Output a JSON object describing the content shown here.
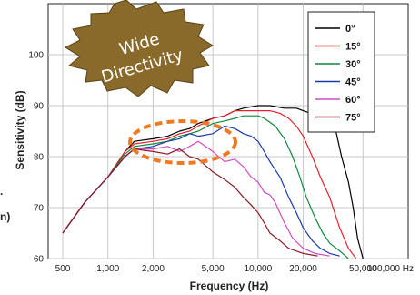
{
  "chart_data": {
    "type": "line",
    "xlabel": "Frequency (Hz)",
    "ylabel": "Sensitivity (dB)",
    "xscale": "log",
    "xlim": [
      400,
      100000
    ],
    "ylim": [
      60,
      110
    ],
    "grid": true,
    "xticks": [
      {
        "value": 500,
        "label": "500"
      },
      {
        "value": 1000,
        "label": "1,000"
      },
      {
        "value": 2000,
        "label": "2,000"
      },
      {
        "value": 5000,
        "label": "5,000"
      },
      {
        "value": 10000,
        "label": "10,000"
      },
      {
        "value": 20000,
        "label": "20,000"
      },
      {
        "value": 50000,
        "label": "50,000"
      },
      {
        "value": 100000,
        "label": "100,000 Hz"
      }
    ],
    "yticks": [
      {
        "value": 60,
        "label": "60"
      },
      {
        "value": 70,
        "label": "70"
      },
      {
        "value": 80,
        "label": "80"
      },
      {
        "value": 90,
        "label": "90"
      },
      {
        "value": 100,
        "label": "100"
      }
    ],
    "legend_position": "top-right",
    "series": [
      {
        "name": "0°",
        "color": "#000000",
        "points": [
          [
            500,
            65
          ],
          [
            700,
            71
          ],
          [
            1000,
            76
          ],
          [
            1300,
            81
          ],
          [
            1500,
            83
          ],
          [
            2000,
            83.5
          ],
          [
            2500,
            84
          ],
          [
            3000,
            85
          ],
          [
            3500,
            85.5
          ],
          [
            4000,
            86.5
          ],
          [
            5000,
            87.5
          ],
          [
            6000,
            88
          ],
          [
            7000,
            89
          ],
          [
            8000,
            89.5
          ],
          [
            10000,
            90
          ],
          [
            12000,
            90
          ],
          [
            15000,
            89.5
          ],
          [
            18000,
            89.5
          ],
          [
            20000,
            89
          ],
          [
            25000,
            88
          ],
          [
            30000,
            87
          ],
          [
            33000,
            85
          ],
          [
            36000,
            80
          ],
          [
            40000,
            75
          ],
          [
            43000,
            70
          ],
          [
            46000,
            64
          ],
          [
            50000,
            60
          ]
        ]
      },
      {
        "name": "15°",
        "color": "#e8202a",
        "points": [
          [
            500,
            65
          ],
          [
            700,
            71
          ],
          [
            1000,
            76
          ],
          [
            1300,
            81
          ],
          [
            1500,
            82.5
          ],
          [
            2000,
            83
          ],
          [
            2500,
            83.5
          ],
          [
            3000,
            84.5
          ],
          [
            3500,
            85
          ],
          [
            4000,
            86
          ],
          [
            5000,
            87.5
          ],
          [
            6000,
            88
          ],
          [
            7000,
            89
          ],
          [
            8000,
            89
          ],
          [
            10000,
            89
          ],
          [
            12000,
            89
          ],
          [
            14000,
            88.5
          ],
          [
            16000,
            87.5
          ],
          [
            18000,
            86
          ],
          [
            20000,
            84
          ],
          [
            23000,
            80
          ],
          [
            26000,
            76
          ],
          [
            30000,
            72
          ],
          [
            35000,
            66
          ],
          [
            40000,
            62
          ],
          [
            45000,
            60
          ]
        ]
      },
      {
        "name": "30°",
        "color": "#0a8a3a",
        "points": [
          [
            500,
            65
          ],
          [
            700,
            71
          ],
          [
            1000,
            76
          ],
          [
            1300,
            80.5
          ],
          [
            1500,
            82
          ],
          [
            2000,
            82.5
          ],
          [
            2500,
            83
          ],
          [
            3000,
            84
          ],
          [
            3500,
            84.5
          ],
          [
            4000,
            85
          ],
          [
            5000,
            86.5
          ],
          [
            6000,
            87
          ],
          [
            7000,
            87.5
          ],
          [
            8000,
            88
          ],
          [
            10000,
            88
          ],
          [
            11000,
            87.5
          ],
          [
            13000,
            86
          ],
          [
            15000,
            83.5
          ],
          [
            17000,
            80
          ],
          [
            19000,
            76
          ],
          [
            21000,
            72
          ],
          [
            24000,
            68
          ],
          [
            27000,
            65
          ],
          [
            30000,
            63
          ],
          [
            35000,
            61.5
          ],
          [
            40000,
            60
          ]
        ]
      },
      {
        "name": "45°",
        "color": "#1a3aa8",
        "points": [
          [
            500,
            65
          ],
          [
            700,
            71
          ],
          [
            1000,
            76
          ],
          [
            1300,
            80
          ],
          [
            1500,
            81.5
          ],
          [
            2000,
            82
          ],
          [
            2500,
            83
          ],
          [
            3000,
            83.5
          ],
          [
            3500,
            84.5
          ],
          [
            4000,
            84
          ],
          [
            5000,
            84.5
          ],
          [
            6000,
            86
          ],
          [
            7000,
            85.5
          ],
          [
            8000,
            84.5
          ],
          [
            9000,
            84
          ],
          [
            10000,
            83
          ],
          [
            11000,
            81
          ],
          [
            12000,
            79
          ],
          [
            14000,
            76
          ],
          [
            16000,
            72
          ],
          [
            18000,
            69
          ],
          [
            20000,
            66
          ],
          [
            23000,
            63.5
          ],
          [
            26000,
            62
          ],
          [
            30000,
            61
          ],
          [
            35000,
            60.5
          ]
        ]
      },
      {
        "name": "60°",
        "color": "#d04ac4",
        "points": [
          [
            500,
            65
          ],
          [
            700,
            71
          ],
          [
            1000,
            76
          ],
          [
            1300,
            80
          ],
          [
            1500,
            81.5
          ],
          [
            2000,
            81.5
          ],
          [
            2500,
            82
          ],
          [
            3000,
            81
          ],
          [
            3500,
            82
          ],
          [
            4000,
            83
          ],
          [
            5000,
            81
          ],
          [
            6000,
            79
          ],
          [
            7000,
            79.5
          ],
          [
            8000,
            78
          ],
          [
            9000,
            76
          ],
          [
            10000,
            75
          ],
          [
            11000,
            73
          ],
          [
            12000,
            72.5
          ],
          [
            13000,
            71
          ],
          [
            15000,
            67
          ],
          [
            17000,
            64
          ],
          [
            20000,
            62
          ],
          [
            24000,
            61
          ],
          [
            30000,
            60.5
          ]
        ]
      },
      {
        "name": "75°",
        "color": "#8a1a24",
        "points": [
          [
            500,
            65
          ],
          [
            700,
            71
          ],
          [
            1000,
            76
          ],
          [
            1300,
            80
          ],
          [
            1500,
            81.5
          ],
          [
            2000,
            81
          ],
          [
            2500,
            80.5
          ],
          [
            3000,
            81.5
          ],
          [
            3500,
            80
          ],
          [
            4000,
            79.5
          ],
          [
            5000,
            77
          ],
          [
            6000,
            75.5
          ],
          [
            7000,
            74
          ],
          [
            8000,
            72
          ],
          [
            9000,
            70.5
          ],
          [
            10000,
            69
          ],
          [
            11000,
            67
          ],
          [
            12000,
            65
          ],
          [
            14000,
            63.5
          ],
          [
            16000,
            62
          ],
          [
            20000,
            61
          ],
          [
            25000,
            60.5
          ]
        ]
      }
    ],
    "annotation": {
      "text_line1": "Wide",
      "text_line2": "Directivity"
    },
    "left_edge_fragments": {
      "fragment1": ".",
      "fragment2": "n)"
    }
  }
}
